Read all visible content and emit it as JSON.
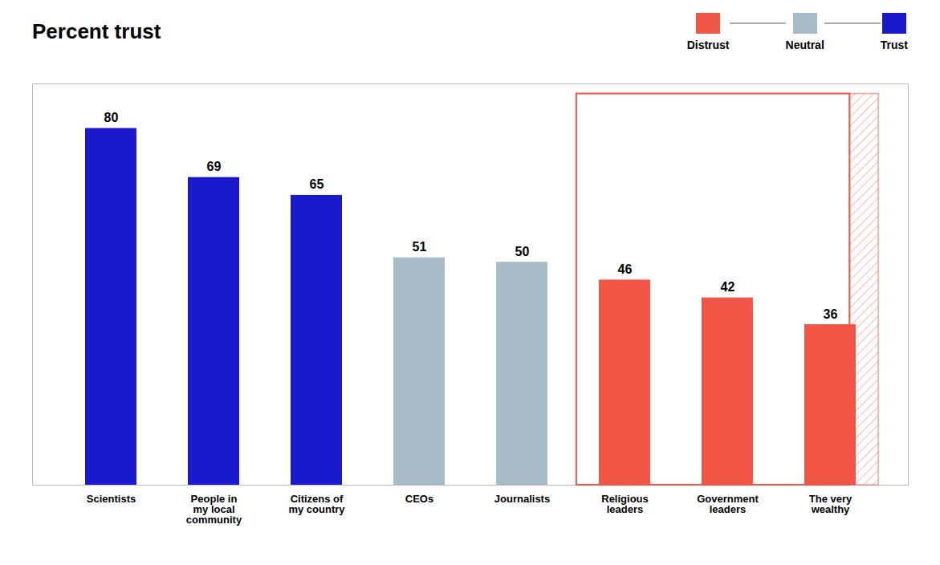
{
  "chart_data": {
    "type": "bar",
    "title": "Percent trust",
    "categories": [
      "Scientists",
      "People in\nmy local\ncommunity",
      "Citizens of\nmy country",
      "CEOs",
      "Journalists",
      "Religious\nleaders",
      "Government\nleaders",
      "The very\nwealthy"
    ],
    "values": [
      80,
      69,
      65,
      51,
      50,
      46,
      42,
      36
    ],
    "colors": [
      "#1a1acc",
      "#1a1acc",
      "#1a1acc",
      "#a8bcc8",
      "#a8bcc8",
      "#f05545",
      "#f05545",
      "#f05545"
    ],
    "ylim": [
      0,
      90
    ],
    "grid": false,
    "data_labels": true,
    "tick_labels": "x",
    "legend": "upper right",
    "legend_entries": [
      {
        "name": "Distrust",
        "color": "#f05545"
      },
      {
        "name": "Neutral",
        "color": "#a8bcc8"
      },
      {
        "name": "Trust",
        "color": "#1a1acc"
      }
    ],
    "highlight": {
      "from": "Religious\nleaders",
      "to": "The very\nwealthy",
      "color": "#f05545"
    }
  }
}
